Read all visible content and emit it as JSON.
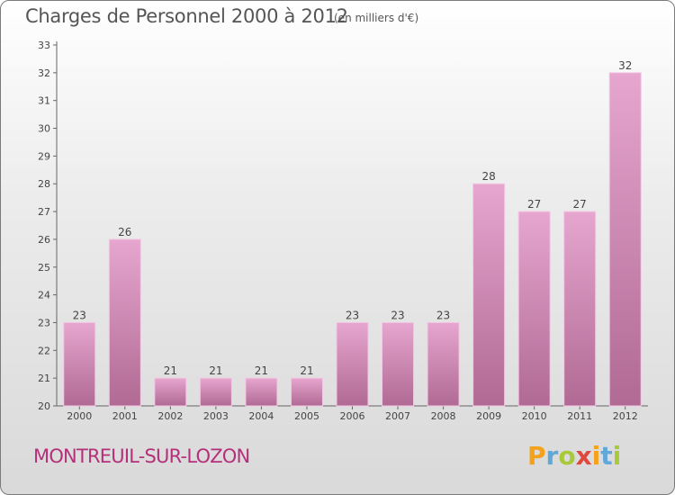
{
  "header": {
    "title": "Charges de Personnel 2000 à 2012",
    "unit": "(en milliers d'€)"
  },
  "footer": {
    "city": "MONTREUIL-SUR-LOZON",
    "brand_letters": [
      "P",
      "r",
      "o",
      "x",
      "i",
      "t",
      "i"
    ],
    "brand_colors": [
      "#f4a21b",
      "#5fa8d8",
      "#a8c93a",
      "#e0483e",
      "#f4a21b",
      "#5fa8d8",
      "#a8c93a"
    ]
  },
  "colors": {
    "bar_top": "#e6a6cf",
    "bar_bottom": "#b06a93",
    "bar_edge": "#f3c6e3",
    "city": "#b5307a"
  },
  "chart_data": {
    "type": "bar",
    "title": "Charges de Personnel 2000 à 2012",
    "subtitle": "(en milliers d'€)",
    "categories": [
      "2000",
      "2001",
      "2002",
      "2003",
      "2004",
      "2005",
      "2006",
      "2007",
      "2008",
      "2009",
      "2010",
      "2011",
      "2012"
    ],
    "values": [
      23,
      26,
      21,
      21,
      21,
      21,
      23,
      23,
      23,
      28,
      27,
      27,
      32
    ],
    "ylim": [
      20,
      33
    ],
    "yticks": [
      20,
      21,
      22,
      23,
      24,
      25,
      26,
      27,
      28,
      29,
      30,
      31,
      32,
      33
    ],
    "grid": false
  }
}
